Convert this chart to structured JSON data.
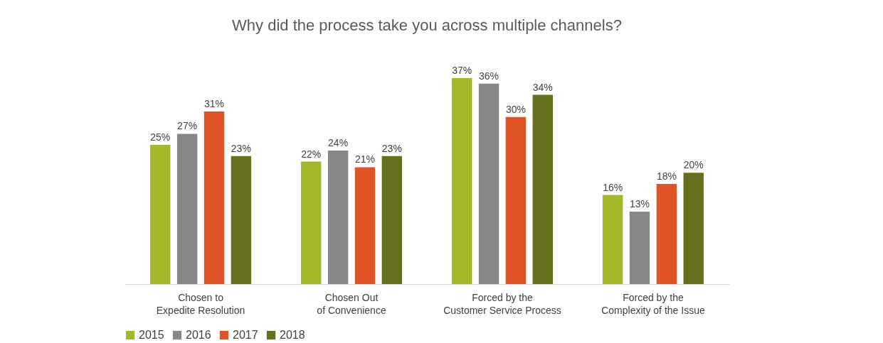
{
  "chart_data": {
    "type": "bar",
    "title": "Why did the process take you across multiple channels?",
    "categories": [
      "Chosen to\nExpedite Resolution",
      "Chosen Out\nof Convenience",
      "Forced by the\nCustomer Service Process",
      "Forced by the\nComplexity of the Issue"
    ],
    "series": [
      {
        "name": "2015",
        "color": "#a5b82a",
        "values": [
          25,
          22,
          37,
          16
        ],
        "value_labels": [
          "25%",
          "22%",
          "37%",
          "16%"
        ]
      },
      {
        "name": "2016",
        "color": "#878787",
        "values": [
          27,
          24,
          36,
          13
        ],
        "value_labels": [
          "27%",
          "24%",
          "36%",
          "13%"
        ]
      },
      {
        "name": "2017",
        "color": "#e05327",
        "values": [
          31,
          21,
          30,
          18
        ],
        "value_labels": [
          "31%",
          "21%",
          "30%",
          "18%"
        ]
      },
      {
        "name": "2018",
        "color": "#66701c",
        "values": [
          23,
          23,
          34,
          20
        ],
        "value_labels": [
          "23%",
          "23%",
          "34%",
          "20%"
        ]
      }
    ],
    "legend": "bottom",
    "grid": false
  }
}
